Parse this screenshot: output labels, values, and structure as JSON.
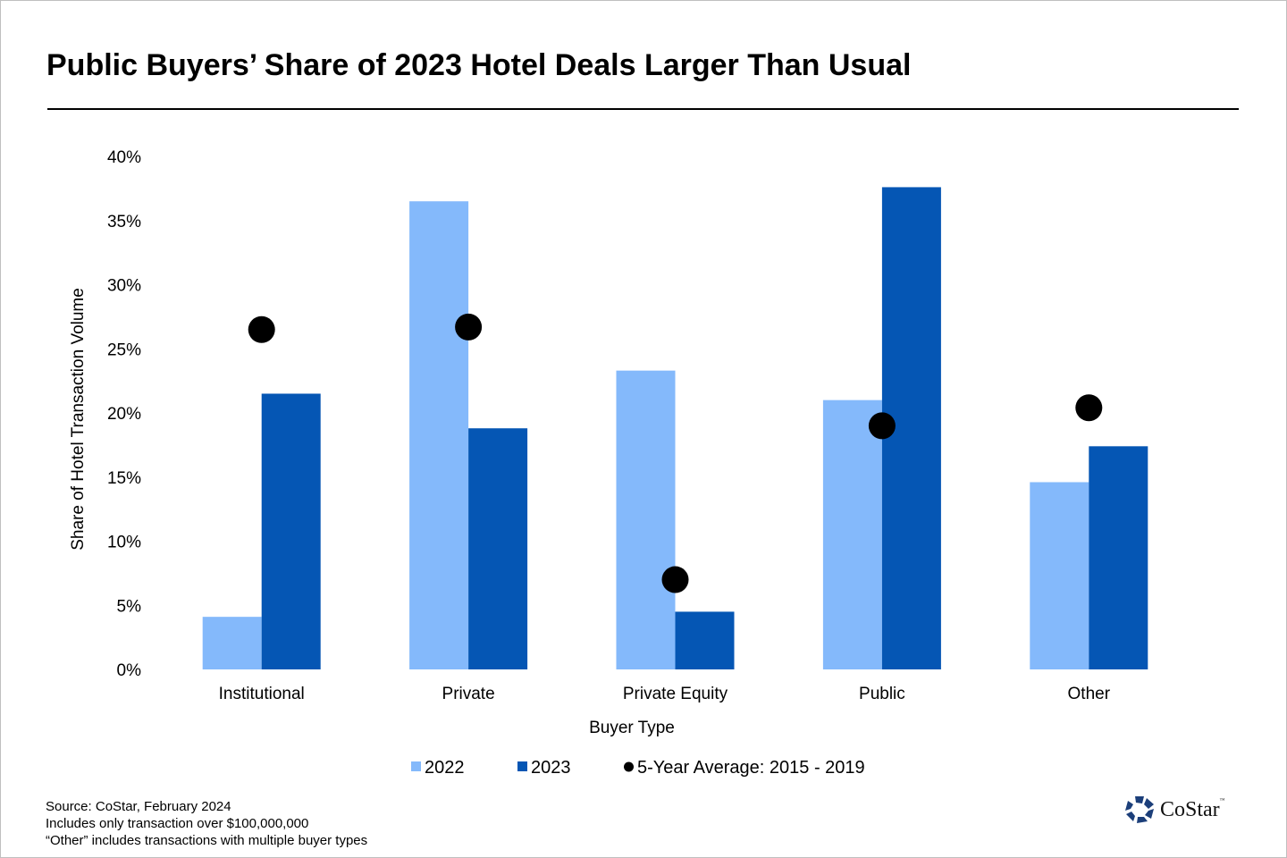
{
  "title": "Public Buyers’ Share of 2023 Hotel Deals Larger Than Usual",
  "footnotes": [
    "Source: CoStar, February 2024",
    "Includes  only transaction over $100,000,000",
    "“Other” includes transactions with multiple buyer types"
  ],
  "logo": {
    "text": "CoStar",
    "tm": "™"
  },
  "chart_data": {
    "type": "bar",
    "xlabel": "Buyer Type",
    "ylabel": "Share of Hotel Transaction Volume",
    "ylim": [
      0,
      40
    ],
    "yticks": [
      "0%",
      "5%",
      "10%",
      "15%",
      "20%",
      "25%",
      "30%",
      "35%",
      "40%"
    ],
    "grid": false,
    "legend_position": "bottom",
    "categories": [
      "Institutional",
      "Private",
      "Private Equity",
      "Public",
      "Other"
    ],
    "series": [
      {
        "name": "2022",
        "kind": "bar",
        "color": "#84b9fb",
        "values": [
          4.1,
          36.5,
          23.3,
          21.0,
          14.6
        ]
      },
      {
        "name": "2023",
        "kind": "bar",
        "color": "#0556b4",
        "values": [
          21.5,
          18.8,
          4.5,
          37.6,
          17.4
        ]
      },
      {
        "name": "5-Year Average: 2015 - 2019",
        "kind": "dot",
        "color": "#000000",
        "values": [
          26.5,
          26.7,
          7.0,
          19.0,
          20.4
        ]
      }
    ]
  }
}
